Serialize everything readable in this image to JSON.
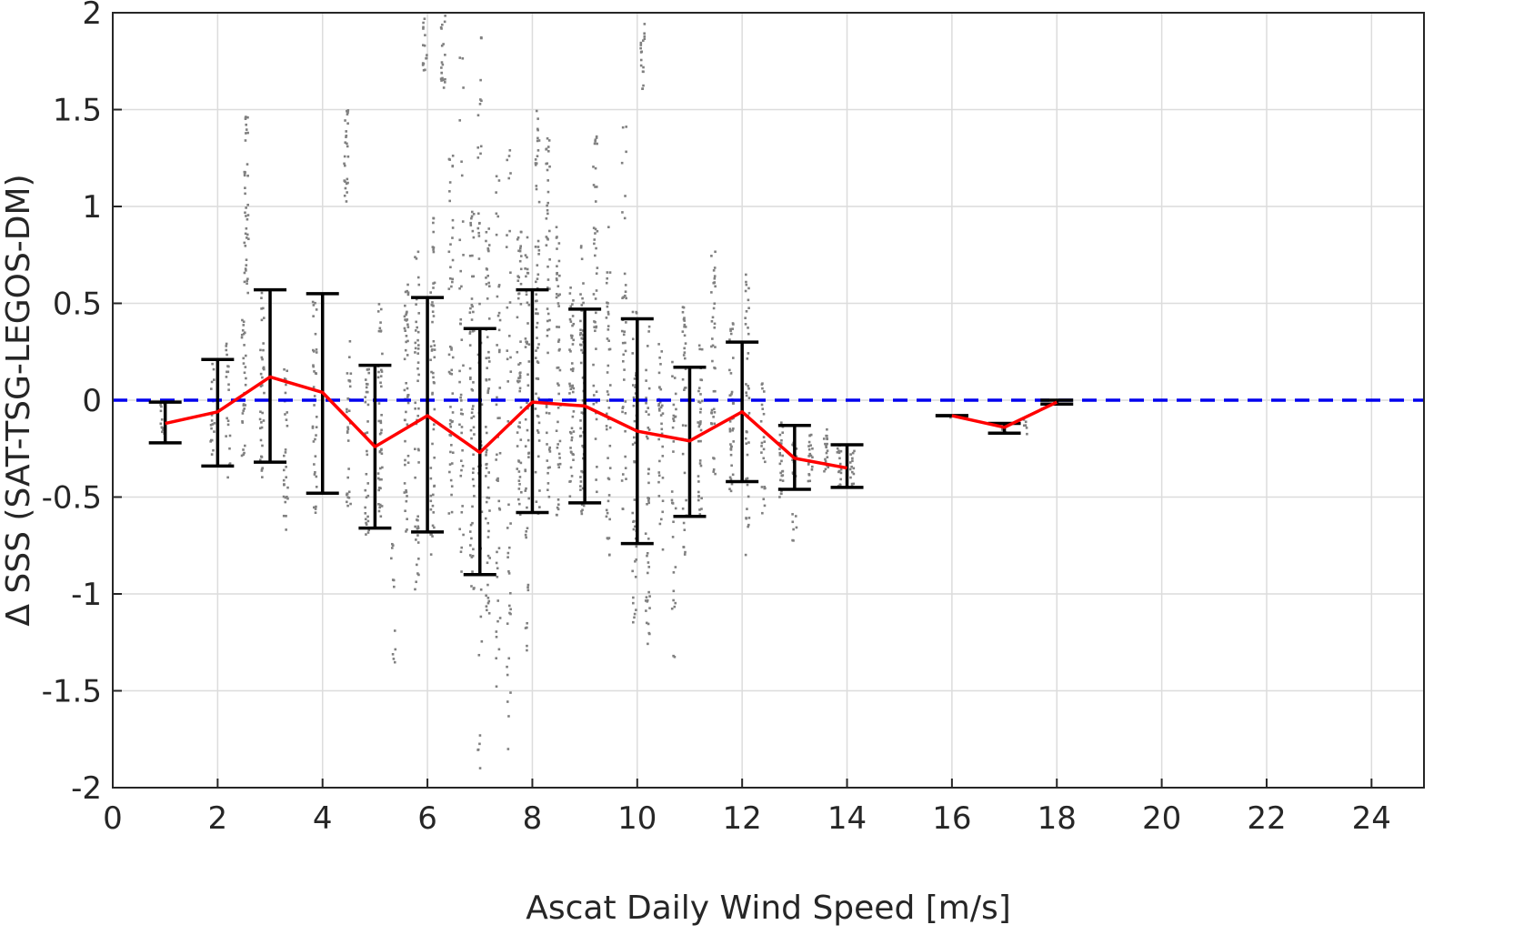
{
  "chart_data": {
    "type": "scatter",
    "xlabel": "Ascat Daily Wind Speed [m/s]",
    "ylabel": "Δ SSS (SAT-TSG-LEGOS-DM)",
    "xlim": [
      0,
      25
    ],
    "ylim": [
      -2,
      2
    ],
    "xticks": [
      "0",
      "2",
      "4",
      "6",
      "8",
      "10",
      "12",
      "14",
      "16",
      "18",
      "20",
      "22",
      "24"
    ],
    "yticks": [
      "2",
      "1.5",
      "1",
      "0.5",
      "0",
      "-0.5",
      "-1",
      "-1.5",
      "-2"
    ],
    "grid": true,
    "reference_line": {
      "y": 0,
      "style": "dashed",
      "color": "#0000ee"
    },
    "colors": {
      "scatter": "#808080",
      "mean_line": "#ff0000",
      "error_bars": "#000000"
    },
    "mean_series": [
      [
        {
          "x": 1,
          "y": -0.12
        },
        {
          "x": 2,
          "y": -0.06
        },
        {
          "x": 3,
          "y": 0.12
        },
        {
          "x": 4,
          "y": 0.04
        },
        {
          "x": 5,
          "y": -0.24
        },
        {
          "x": 6,
          "y": -0.08
        },
        {
          "x": 7,
          "y": -0.27
        },
        {
          "x": 8,
          "y": -0.01
        },
        {
          "x": 9,
          "y": -0.03
        },
        {
          "x": 10,
          "y": -0.16
        },
        {
          "x": 11,
          "y": -0.21
        },
        {
          "x": 12,
          "y": -0.06
        },
        {
          "x": 13,
          "y": -0.3
        },
        {
          "x": 14,
          "y": -0.35
        }
      ],
      [
        {
          "x": 16,
          "y": -0.08
        },
        {
          "x": 17,
          "y": -0.14
        },
        {
          "x": 18,
          "y": -0.01
        }
      ]
    ],
    "error_bars": [
      {
        "x": 1,
        "low": -0.22,
        "high": -0.01
      },
      {
        "x": 2,
        "low": -0.34,
        "high": 0.21
      },
      {
        "x": 3,
        "low": -0.32,
        "high": 0.57
      },
      {
        "x": 4,
        "low": -0.48,
        "high": 0.55
      },
      {
        "x": 5,
        "low": -0.66,
        "high": 0.18
      },
      {
        "x": 6,
        "low": -0.68,
        "high": 0.53
      },
      {
        "x": 7,
        "low": -0.9,
        "high": 0.37
      },
      {
        "x": 8,
        "low": -0.58,
        "high": 0.57
      },
      {
        "x": 9,
        "low": -0.53,
        "high": 0.47
      },
      {
        "x": 10,
        "low": -0.74,
        "high": 0.42
      },
      {
        "x": 11,
        "low": -0.6,
        "high": 0.17
      },
      {
        "x": 12,
        "low": -0.42,
        "high": 0.3
      },
      {
        "x": 13,
        "low": -0.46,
        "high": -0.13
      },
      {
        "x": 14,
        "low": -0.45,
        "high": -0.23
      },
      {
        "x": 16,
        "low": -0.08,
        "high": -0.08
      },
      {
        "x": 17,
        "low": -0.17,
        "high": -0.12
      },
      {
        "x": 18,
        "low": -0.02,
        "high": 0.0
      }
    ],
    "scatter_clusters": [
      {
        "x": 0.95,
        "ymin": -0.2,
        "ymax": 0.0,
        "n": 12
      },
      {
        "x": 1.9,
        "ymin": -0.3,
        "ymax": 0.2,
        "n": 20
      },
      {
        "x": 2.2,
        "ymin": -0.4,
        "ymax": 0.3,
        "n": 20
      },
      {
        "x": 2.5,
        "ymin": -0.3,
        "ymax": 0.45,
        "n": 30
      },
      {
        "x": 2.55,
        "ymin": 0.5,
        "ymax": 1.48,
        "n": 40
      },
      {
        "x": 2.85,
        "ymin": -0.4,
        "ymax": 0.6,
        "n": 35
      },
      {
        "x": 3.3,
        "ymin": -0.68,
        "ymax": 0.2,
        "n": 30
      },
      {
        "x": 3.85,
        "ymin": -0.6,
        "ymax": 0.55,
        "n": 35
      },
      {
        "x": 4.45,
        "ymin": 0.99,
        "ymax": 1.51,
        "n": 25
      },
      {
        "x": 4.5,
        "ymin": -0.6,
        "ymax": 0.4,
        "n": 30
      },
      {
        "x": 4.85,
        "ymin": -0.7,
        "ymax": 0.2,
        "n": 35
      },
      {
        "x": 5.1,
        "ymin": -0.7,
        "ymax": 0.5,
        "n": 45
      },
      {
        "x": 5.35,
        "ymin": -1.4,
        "ymax": -0.7,
        "n": 12
      },
      {
        "x": 5.6,
        "ymin": -0.7,
        "ymax": 0.6,
        "n": 50
      },
      {
        "x": 5.8,
        "ymin": -1.0,
        "ymax": 0.8,
        "n": 50
      },
      {
        "x": 5.95,
        "ymin": 1.7,
        "ymax": 1.98,
        "n": 15
      },
      {
        "x": 6.1,
        "ymin": -0.8,
        "ymax": 1.0,
        "n": 55
      },
      {
        "x": 6.3,
        "ymin": 1.6,
        "ymax": 1.99,
        "n": 20
      },
      {
        "x": 6.45,
        "ymin": -0.6,
        "ymax": 1.3,
        "n": 50
      },
      {
        "x": 6.65,
        "ymin": -1.0,
        "ymax": 1.95,
        "n": 40
      },
      {
        "x": 6.85,
        "ymin": -1.0,
        "ymax": 1.0,
        "n": 60
      },
      {
        "x": 7.0,
        "ymin": -1.9,
        "ymax": 1.95,
        "n": 45
      },
      {
        "x": 7.15,
        "ymin": -1.1,
        "ymax": 0.9,
        "n": 60
      },
      {
        "x": 7.35,
        "ymin": -1.5,
        "ymax": 1.2,
        "n": 45
      },
      {
        "x": 7.55,
        "ymin": -1.85,
        "ymax": 1.3,
        "n": 40
      },
      {
        "x": 7.75,
        "ymin": -0.6,
        "ymax": 0.88,
        "n": 55
      },
      {
        "x": 7.9,
        "ymin": -1.3,
        "ymax": 0.85,
        "n": 50
      },
      {
        "x": 8.1,
        "ymin": -0.6,
        "ymax": 1.5,
        "n": 60
      },
      {
        "x": 8.3,
        "ymin": -0.5,
        "ymax": 1.5,
        "n": 55
      },
      {
        "x": 8.5,
        "ymin": -0.6,
        "ymax": 0.9,
        "n": 50
      },
      {
        "x": 8.75,
        "ymin": -0.5,
        "ymax": 0.6,
        "n": 50
      },
      {
        "x": 8.95,
        "ymin": -0.6,
        "ymax": 0.8,
        "n": 55
      },
      {
        "x": 9.2,
        "ymin": -0.5,
        "ymax": 1.5,
        "n": 45
      },
      {
        "x": 9.45,
        "ymin": -0.8,
        "ymax": 0.9,
        "n": 45
      },
      {
        "x": 9.75,
        "ymin": -0.6,
        "ymax": 1.55,
        "n": 40
      },
      {
        "x": 9.95,
        "ymin": -1.2,
        "ymax": 0.5,
        "n": 45
      },
      {
        "x": 10.1,
        "ymin": 1.6,
        "ymax": 1.95,
        "n": 18
      },
      {
        "x": 10.2,
        "ymin": -1.3,
        "ymax": 0.5,
        "n": 45
      },
      {
        "x": 10.45,
        "ymin": -0.8,
        "ymax": 0.3,
        "n": 35
      },
      {
        "x": 10.7,
        "ymin": -1.35,
        "ymax": 0.2,
        "n": 30
      },
      {
        "x": 10.9,
        "ymin": -0.8,
        "ymax": 0.55,
        "n": 35
      },
      {
        "x": 11.2,
        "ymin": -0.6,
        "ymax": 0.3,
        "n": 35
      },
      {
        "x": 11.45,
        "ymin": -0.4,
        "ymax": 0.78,
        "n": 40
      },
      {
        "x": 11.8,
        "ymin": -0.5,
        "ymax": 0.4,
        "n": 40
      },
      {
        "x": 12.1,
        "ymin": -0.86,
        "ymax": 0.7,
        "n": 40
      },
      {
        "x": 12.4,
        "ymin": -0.6,
        "ymax": 0.1,
        "n": 25
      },
      {
        "x": 12.75,
        "ymin": -0.5,
        "ymax": -0.1,
        "n": 25
      },
      {
        "x": 13.0,
        "ymin": -0.73,
        "ymax": -0.2,
        "n": 20
      },
      {
        "x": 13.3,
        "ymin": -0.45,
        "ymax": -0.15,
        "n": 20
      },
      {
        "x": 13.6,
        "ymin": -0.4,
        "ymax": -0.15,
        "n": 20
      },
      {
        "x": 13.85,
        "ymin": -0.45,
        "ymax": -0.2,
        "n": 20
      },
      {
        "x": 14.1,
        "ymin": -0.45,
        "ymax": -0.25,
        "n": 15
      },
      {
        "x": 16.0,
        "ymin": -0.09,
        "ymax": -0.07,
        "n": 6
      },
      {
        "x": 17.0,
        "ymin": -0.17,
        "ymax": -0.11,
        "n": 10
      },
      {
        "x": 17.4,
        "ymin": -0.18,
        "ymax": -0.1,
        "n": 6
      },
      {
        "x": 18.0,
        "ymin": -0.02,
        "ymax": 0.0,
        "n": 5
      }
    ]
  }
}
